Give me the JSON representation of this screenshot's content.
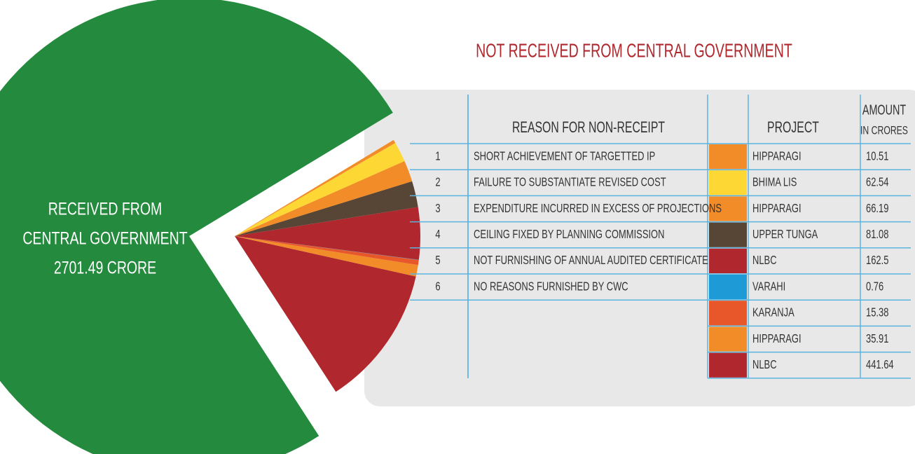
{
  "title": "NOT RECEIVED FROM CENTRAL GOVERNMENT",
  "received": {
    "label_lines": [
      "RECEIVED FROM",
      "CENTRAL GOVERNMENT"
    ],
    "value": 2701.49,
    "value_label": "2701.49 CRORE",
    "color": "#248a3d"
  },
  "table": {
    "headers": {
      "reason": "REASON FOR NON-RECEIPT",
      "project": "PROJECT",
      "amount": "AMOUNT",
      "amount_unit": "IN CRORES"
    },
    "rows": [
      {
        "no": 1,
        "reason": "SHORT ACHIEVEMENT OF TARGETTED IP",
        "project": "HIPPARAGI",
        "color": "#f28c28",
        "amount": 10.51
      },
      {
        "no": 2,
        "reason": "FAILURE TO SUBSTANTIATE REVISED COST",
        "project": "BHIMA LIS",
        "color": "#fdd835",
        "amount": 62.54
      },
      {
        "no": 3,
        "reason": "EXPENDITURE INCURRED IN EXCESS OF PROJECTIONS",
        "project": "HIPPARAGI",
        "color": "#f28c28",
        "amount": 66.19
      },
      {
        "no": 4,
        "reason": "CEILING FIXED BY PLANNING COMMISSION",
        "project": "UPPER TUNGA",
        "color": "#574536",
        "amount": 81.08
      },
      {
        "no": 5,
        "reason": "NOT FURNISHING OF ANNUAL AUDITED CERTIFICATE",
        "project": "NLBC",
        "color": "#b0282e",
        "amount": 162.5
      },
      {
        "no": 6,
        "reason": "NO REASONS FURNISHED BY CWC",
        "project": "VARAHI",
        "color": "#1e9ad6",
        "amount": 0.76
      },
      {
        "project": "KARANJA",
        "color": "#e8572a",
        "amount": 15.38
      },
      {
        "project": "HIPPARAGI",
        "color": "#f28c28",
        "amount": 35.91
      },
      {
        "project": "NLBC",
        "color": "#b0282e",
        "amount": 441.64
      }
    ]
  }
}
